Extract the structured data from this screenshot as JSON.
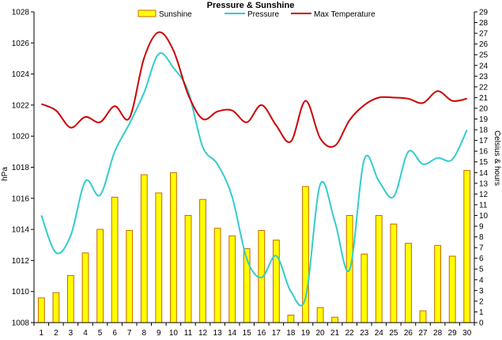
{
  "chart_data": {
    "type": "bar+line",
    "title": "Pressure & Sunshine",
    "x": [
      1,
      2,
      3,
      4,
      5,
      6,
      7,
      8,
      9,
      10,
      11,
      12,
      13,
      14,
      15,
      16,
      17,
      18,
      19,
      20,
      21,
      22,
      23,
      24,
      25,
      26,
      27,
      28,
      29,
      30
    ],
    "xlabel": "",
    "y_left": {
      "label": "hPa",
      "range": [
        1008,
        1028
      ],
      "ticks": [
        1008,
        1010,
        1012,
        1014,
        1016,
        1018,
        1020,
        1022,
        1024,
        1026,
        1028
      ]
    },
    "y_right": {
      "label": "Celsius & hours",
      "range": [
        0,
        29
      ],
      "ticks": [
        0,
        1,
        2,
        3,
        4,
        5,
        6,
        7,
        8,
        9,
        10,
        11,
        12,
        13,
        14,
        15,
        16,
        17,
        18,
        19,
        20,
        21,
        22,
        23,
        24,
        25,
        26,
        27,
        28,
        29
      ]
    },
    "grid": false,
    "legend_position": "top-center",
    "series": [
      {
        "name": "Sunshine",
        "kind": "bar",
        "axis": "right",
        "fill": "#ffff00",
        "stroke": "#cc6600",
        "values": [
          2.3,
          2.8,
          4.4,
          6.5,
          8.7,
          11.7,
          8.6,
          13.8,
          12.1,
          14.0,
          10.0,
          11.5,
          8.8,
          8.1,
          6.9,
          8.6,
          7.7,
          0.7,
          12.7,
          1.4,
          0.5,
          10.0,
          6.4,
          10.0,
          9.2,
          7.4,
          1.1,
          7.2,
          6.2,
          14.2
        ]
      },
      {
        "name": "Pressure",
        "kind": "line",
        "axis": "left",
        "color": "#33cccc",
        "values": [
          1014.9,
          1012.5,
          1013.6,
          1017.1,
          1016.2,
          1019.0,
          1020.8,
          1022.8,
          1025.3,
          1024.4,
          1022.9,
          1019.3,
          1018.2,
          1016.1,
          1012.1,
          1010.9,
          1012.3,
          1010.0,
          1009.6,
          1016.9,
          1014.5,
          1011.4,
          1018.5,
          1017.1,
          1016.1,
          1019.0,
          1018.2,
          1018.6,
          1018.5,
          1020.4
        ]
      },
      {
        "name": "Max Temperature",
        "kind": "line",
        "axis": "right",
        "color": "#cc0000",
        "values": [
          20.4,
          19.8,
          18.2,
          19.2,
          18.7,
          20.2,
          19.1,
          24.7,
          27.1,
          25.4,
          21.3,
          19.0,
          19.7,
          19.8,
          18.7,
          20.3,
          18.4,
          16.9,
          20.7,
          17.2,
          16.5,
          18.9,
          20.3,
          21.0,
          21.0,
          20.9,
          20.5,
          21.6,
          20.7,
          20.9
        ]
      }
    ]
  }
}
